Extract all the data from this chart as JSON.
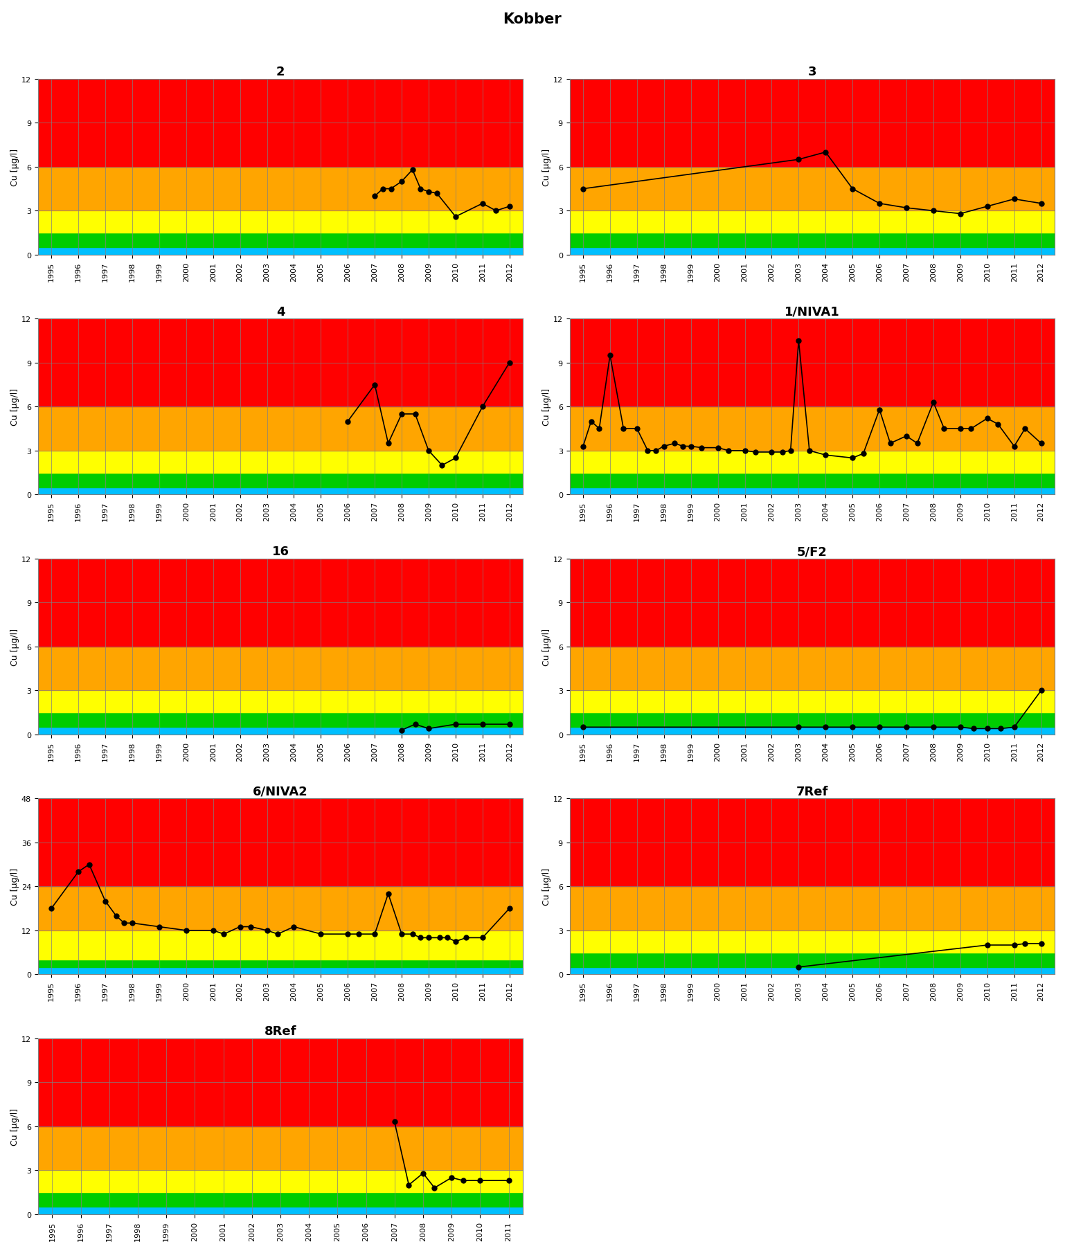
{
  "title": "Kobber",
  "subplots": [
    {
      "title": "2",
      "ylim": [
        0,
        12
      ],
      "yticks": [
        0,
        3,
        6,
        9,
        12
      ],
      "years": [
        2007,
        2007.3,
        2007.6,
        2008,
        2008.4,
        2008.7,
        2009,
        2009.3,
        2010,
        2011,
        2011.5,
        2012
      ],
      "values": [
        4.0,
        4.5,
        4.5,
        5.0,
        5.8,
        4.5,
        4.3,
        4.2,
        2.6,
        3.5,
        3.0,
        3.3
      ],
      "color_bands": [
        [
          0,
          0.5,
          "#00BFFF"
        ],
        [
          0.5,
          1.5,
          "#00CC00"
        ],
        [
          1.5,
          3.0,
          "#FFFF00"
        ],
        [
          3.0,
          6.0,
          "#FFA500"
        ],
        [
          6.0,
          12.0,
          "#FF0000"
        ]
      ]
    },
    {
      "title": "3",
      "ylim": [
        0,
        12
      ],
      "yticks": [
        0,
        3,
        6,
        9,
        12
      ],
      "years": [
        1995,
        2003,
        2004,
        2005,
        2006,
        2007,
        2008,
        2009,
        2010,
        2011,
        2012
      ],
      "values": [
        4.5,
        6.5,
        7.0,
        4.5,
        3.5,
        3.2,
        3.0,
        2.8,
        3.3,
        3.8,
        3.5
      ],
      "color_bands": [
        [
          0,
          0.5,
          "#00BFFF"
        ],
        [
          0.5,
          1.5,
          "#00CC00"
        ],
        [
          1.5,
          3.0,
          "#FFFF00"
        ],
        [
          3.0,
          6.0,
          "#FFA500"
        ],
        [
          6.0,
          12.0,
          "#FF0000"
        ]
      ]
    },
    {
      "title": "4",
      "ylim": [
        0,
        12
      ],
      "yticks": [
        0,
        3,
        6,
        9,
        12
      ],
      "years": [
        2006,
        2007,
        2007.5,
        2008,
        2008.5,
        2009,
        2009.5,
        2010,
        2011,
        2012
      ],
      "values": [
        5.0,
        7.5,
        3.5,
        5.5,
        5.5,
        3.0,
        2.0,
        2.5,
        6.0,
        9.0
      ],
      "color_bands": [
        [
          0,
          0.5,
          "#00BFFF"
        ],
        [
          0.5,
          1.5,
          "#00CC00"
        ],
        [
          1.5,
          3.0,
          "#FFFF00"
        ],
        [
          3.0,
          6.0,
          "#FFA500"
        ],
        [
          6.0,
          12.0,
          "#FF0000"
        ]
      ]
    },
    {
      "title": "1/NIVA1",
      "ylim": [
        0,
        12
      ],
      "yticks": [
        0,
        3,
        6,
        9,
        12
      ],
      "years": [
        1995,
        1995.3,
        1995.6,
        1996,
        1996.5,
        1997,
        1997.4,
        1997.7,
        1998,
        1998.4,
        1998.7,
        1999,
        1999.4,
        2000,
        2000.4,
        2001,
        2001.4,
        2002,
        2002.4,
        2002.7,
        2003,
        2003.4,
        2004,
        2005,
        2005.4,
        2006,
        2006.4,
        2007,
        2007.4,
        2008,
        2008.4,
        2009,
        2009.4,
        2010,
        2010.4,
        2011,
        2011.4,
        2012
      ],
      "values": [
        3.3,
        5.0,
        4.5,
        9.5,
        4.5,
        4.5,
        3.0,
        3.0,
        3.3,
        3.5,
        3.3,
        3.3,
        3.2,
        3.2,
        3.0,
        3.0,
        2.9,
        2.9,
        2.9,
        3.0,
        10.5,
        3.0,
        2.7,
        2.5,
        2.8,
        5.8,
        3.5,
        4.0,
        3.5,
        6.3,
        4.5,
        4.5,
        4.5,
        5.2,
        4.8,
        3.3,
        4.5,
        3.5
      ],
      "color_bands": [
        [
          0,
          0.5,
          "#00BFFF"
        ],
        [
          0.5,
          1.5,
          "#00CC00"
        ],
        [
          1.5,
          3.0,
          "#FFFF00"
        ],
        [
          3.0,
          6.0,
          "#FFA500"
        ],
        [
          6.0,
          12.0,
          "#FF0000"
        ]
      ]
    },
    {
      "title": "16",
      "ylim": [
        0,
        12
      ],
      "yticks": [
        0,
        3,
        6,
        9,
        12
      ],
      "years": [
        2008,
        2008.5,
        2009,
        2010,
        2011,
        2012
      ],
      "values": [
        0.3,
        0.7,
        0.4,
        0.7,
        0.7,
        0.7
      ],
      "color_bands": [
        [
          0,
          0.5,
          "#00BFFF"
        ],
        [
          0.5,
          1.5,
          "#00CC00"
        ],
        [
          1.5,
          3.0,
          "#FFFF00"
        ],
        [
          3.0,
          6.0,
          "#FFA500"
        ],
        [
          6.0,
          12.0,
          "#FF0000"
        ]
      ]
    },
    {
      "title": "5/F2",
      "ylim": [
        0,
        12
      ],
      "yticks": [
        0,
        3,
        6,
        9,
        12
      ],
      "years": [
        1995,
        2003,
        2004,
        2005,
        2006,
        2007,
        2008,
        2009,
        2009.5,
        2010,
        2010.5,
        2011,
        2012
      ],
      "values": [
        0.5,
        0.5,
        0.5,
        0.5,
        0.5,
        0.5,
        0.5,
        0.5,
        0.4,
        0.4,
        0.4,
        0.5,
        3.0
      ],
      "color_bands": [
        [
          0,
          0.5,
          "#00BFFF"
        ],
        [
          0.5,
          1.5,
          "#00CC00"
        ],
        [
          1.5,
          3.0,
          "#FFFF00"
        ],
        [
          3.0,
          6.0,
          "#FFA500"
        ],
        [
          6.0,
          12.0,
          "#FF0000"
        ]
      ]
    },
    {
      "title": "6/NIVA2",
      "ylim": [
        0,
        48
      ],
      "yticks": [
        0,
        12,
        24,
        36,
        48
      ],
      "years": [
        1995,
        1996,
        1996.4,
        1997,
        1997.4,
        1997.7,
        1998,
        1999,
        2000,
        2001,
        2001.4,
        2002,
        2002.4,
        2003,
        2003.4,
        2004,
        2005,
        2006,
        2006.4,
        2007,
        2007.5,
        2008,
        2008.4,
        2008.7,
        2009,
        2009.4,
        2009.7,
        2010,
        2010.4,
        2011,
        2012
      ],
      "values": [
        18,
        28,
        30,
        20,
        16,
        14,
        14,
        13,
        12,
        12,
        11,
        13,
        13,
        12,
        11,
        13,
        11,
        11,
        11,
        11,
        22,
        11,
        11,
        10,
        10,
        10,
        10,
        9,
        10,
        10,
        18
      ],
      "color_bands": [
        [
          0,
          2,
          "#00BFFF"
        ],
        [
          2,
          4,
          "#00CC00"
        ],
        [
          4,
          12,
          "#FFFF00"
        ],
        [
          12,
          24,
          "#FFA500"
        ],
        [
          24,
          48,
          "#FF0000"
        ]
      ]
    },
    {
      "title": "7Ref",
      "ylim": [
        0,
        12
      ],
      "yticks": [
        0,
        3,
        6,
        9,
        12
      ],
      "years": [
        2003,
        2010,
        2011,
        2011.4,
        2012
      ],
      "values": [
        0.5,
        2.0,
        2.0,
        2.1,
        2.1
      ],
      "color_bands": [
        [
          0,
          0.5,
          "#00BFFF"
        ],
        [
          0.5,
          1.5,
          "#00CC00"
        ],
        [
          1.5,
          3.0,
          "#FFFF00"
        ],
        [
          3.0,
          6.0,
          "#FFA500"
        ],
        [
          6.0,
          12.0,
          "#FF0000"
        ]
      ]
    },
    {
      "title": "8Ref",
      "ylim": [
        0,
        12
      ],
      "yticks": [
        0,
        3,
        6,
        9,
        12
      ],
      "years": [
        2007,
        2007.5,
        2008,
        2008.4,
        2009,
        2009.4,
        2010,
        2011
      ],
      "values": [
        6.3,
        2.0,
        2.8,
        1.8,
        2.5,
        2.3,
        2.3,
        2.3
      ],
      "color_bands": [
        [
          0,
          0.5,
          "#00BFFF"
        ],
        [
          0.5,
          1.5,
          "#00CC00"
        ],
        [
          1.5,
          3.0,
          "#FFFF00"
        ],
        [
          3.0,
          6.0,
          "#FFA500"
        ],
        [
          6.0,
          12.0,
          "#FF0000"
        ]
      ]
    }
  ],
  "xlabel_years": [
    1995,
    1996,
    1997,
    1998,
    1999,
    2000,
    2001,
    2002,
    2003,
    2004,
    2005,
    2006,
    2007,
    2008,
    2009,
    2010,
    2011,
    2012
  ],
  "xlabel_years_8ref": [
    1995,
    1996,
    1997,
    1998,
    1999,
    2000,
    2001,
    2002,
    2003,
    2004,
    2005,
    2006,
    2007,
    2008,
    2009,
    2010,
    2011
  ],
  "xmin": 1994.5,
  "xmax": 2012.5,
  "xmax_8ref": 2011.5,
  "ylabel": "Cu [μg/l]",
  "grid_color": "#808080",
  "line_color": "#000000",
  "marker": "o",
  "marker_size": 5,
  "title_fontsize": 13,
  "axis_fontsize": 9,
  "tick_fontsize": 8,
  "fig_width": 15.38,
  "fig_height": 18.08
}
